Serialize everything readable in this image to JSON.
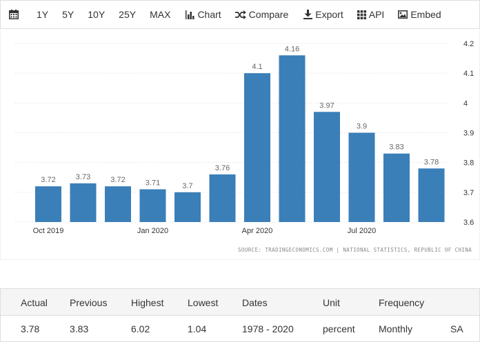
{
  "toolbar": {
    "items": [
      {
        "label": ""
      },
      {
        "label": "1Y"
      },
      {
        "label": "5Y"
      },
      {
        "label": "10Y"
      },
      {
        "label": "25Y"
      },
      {
        "label": "MAX"
      },
      {
        "label": "Chart"
      },
      {
        "label": "Compare"
      },
      {
        "label": "Export"
      },
      {
        "label": "API"
      },
      {
        "label": "Embed"
      }
    ]
  },
  "chart_data": {
    "type": "bar",
    "categories": [
      "Oct 2019",
      "Nov 2019",
      "Dec 2019",
      "Jan 2020",
      "Feb 2020",
      "Mar 2020",
      "Apr 2020",
      "May 2020",
      "Jun 2020",
      "Jul 2020",
      "Aug 2020",
      "Sep 2020"
    ],
    "values": [
      3.72,
      3.73,
      3.72,
      3.71,
      3.7,
      3.76,
      4.1,
      4.16,
      3.97,
      3.9,
      3.83,
      3.78
    ],
    "data_labels": [
      "3.72",
      "3.73",
      "3.72",
      "3.71",
      "3.7",
      "3.76",
      "4.1",
      "4.16",
      "3.97",
      "3.9",
      "3.83",
      "3.78"
    ],
    "x_tick_labels": [
      {
        "index": 0,
        "label": "Oct 2019"
      },
      {
        "index": 3,
        "label": "Jan 2020"
      },
      {
        "index": 6,
        "label": "Apr 2020"
      },
      {
        "index": 9,
        "label": "Jul 2020"
      }
    ],
    "y_ticks": [
      3.6,
      3.7,
      3.8,
      3.9,
      4,
      4.1,
      4.2
    ],
    "y_tick_labels": [
      "3.6",
      "3.7",
      "3.8",
      "3.9",
      "4",
      "4.1",
      "4.2"
    ],
    "ylim": [
      3.6,
      4.2
    ],
    "y_axis_side": "right",
    "grid": true,
    "bar_color": "#3a7fb8",
    "title": "",
    "xlabel": "",
    "ylabel": ""
  },
  "source": "SOURCE: TRADINGECONOMICS.COM | NATIONAL STATISTICS, REPUBLIC OF CHINA",
  "stats": {
    "headers": [
      "Actual",
      "Previous",
      "Highest",
      "Lowest",
      "Dates",
      "Unit",
      "Frequency",
      ""
    ],
    "values": [
      "3.78",
      "3.83",
      "6.02",
      "1.04",
      "1978 - 2020",
      "percent",
      "Monthly",
      "SA"
    ]
  }
}
